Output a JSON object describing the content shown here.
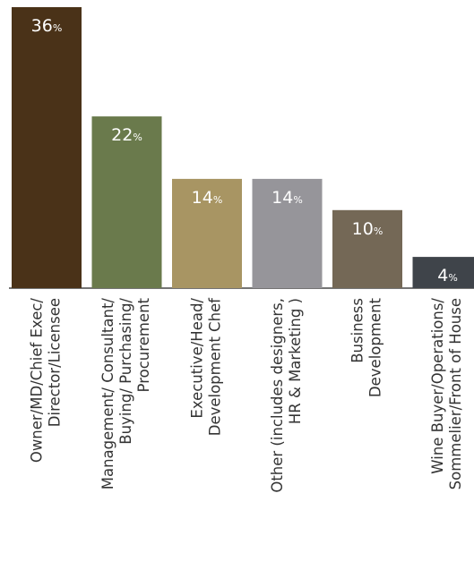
{
  "chart_data": {
    "type": "bar",
    "categories": [
      [
        "Owner/MD/Chief Exec/",
        "Director/Licensee"
      ],
      [
        "Management/ Consultant/",
        "Buying/ Purchasing/",
        "Procurement"
      ],
      [
        "Executive/Head/",
        "Development Chef"
      ],
      [
        "Other (includes designers,",
        "HR & Marketing )"
      ],
      [
        "Business",
        "Development"
      ],
      [
        "Wine Buyer/Operations/",
        "Sommelier/Front of House"
      ]
    ],
    "values": [
      36,
      22,
      14,
      14,
      10,
      4
    ],
    "value_labels": [
      "36",
      "22",
      "14",
      "14",
      "10",
      "4"
    ],
    "value_suffix": "%",
    "colors": [
      "#4a3218",
      "#6a7a4c",
      "#a89563",
      "#96959a",
      "#746856",
      "#3f444a"
    ],
    "ylim": [
      0,
      36
    ],
    "legend": "none",
    "grid": false
  }
}
